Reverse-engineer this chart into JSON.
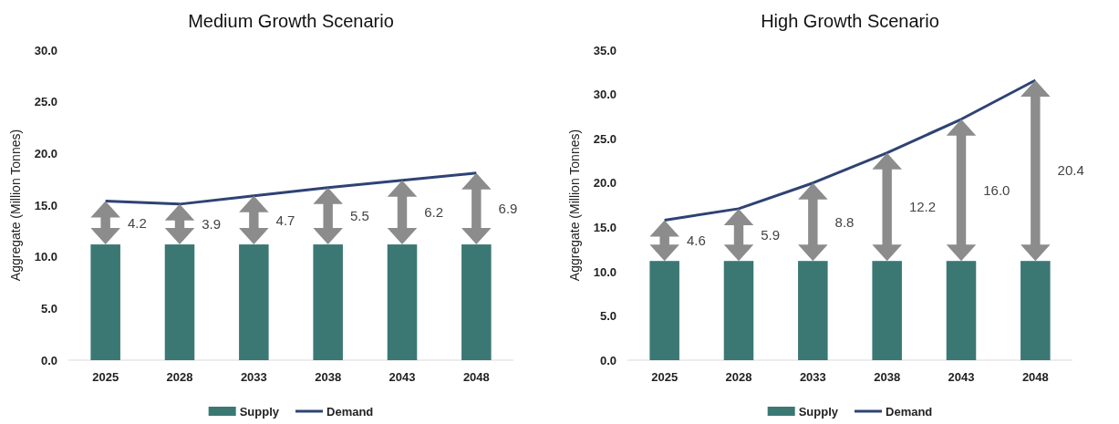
{
  "chart_data": [
    {
      "type": "bar",
      "title": "Medium Growth Scenario",
      "ylabel": "Aggregate (Million Tonnes)",
      "categories": [
        "2025",
        "2028",
        "2033",
        "2038",
        "2043",
        "2048"
      ],
      "series": [
        {
          "name": "Supply",
          "color": "#3b7874",
          "values": [
            11.2,
            11.2,
            11.2,
            11.2,
            11.2,
            11.2
          ]
        },
        {
          "name": "Demand",
          "type": "line",
          "color": "#2e4374",
          "values": [
            15.4,
            15.1,
            15.9,
            16.7,
            17.4,
            18.1
          ]
        }
      ],
      "ylim": [
        0,
        30
      ],
      "yticks": [
        {
          "value": 0,
          "label": "0.0"
        },
        {
          "value": 5,
          "label": "5.0"
        },
        {
          "value": 10,
          "label": "10.0"
        },
        {
          "value": 15,
          "label": "15.0"
        },
        {
          "value": 20,
          "label": "20.0"
        },
        {
          "value": 25,
          "label": "25.0"
        },
        {
          "value": 30,
          "label": "30.0"
        }
      ],
      "annotations": [
        "4.2",
        "3.9",
        "4.7",
        "5.5",
        "6.2",
        "6.9"
      ],
      "grid": false,
      "legend": "bottom"
    },
    {
      "type": "bar",
      "title": "High Growth Scenario",
      "ylabel": "Aggregate (Million Tonnes)",
      "categories": [
        "2025",
        "2028",
        "2033",
        "2038",
        "2043",
        "2048"
      ],
      "series": [
        {
          "name": "Supply",
          "color": "#3b7874",
          "values": [
            11.2,
            11.2,
            11.2,
            11.2,
            11.2,
            11.2
          ]
        },
        {
          "name": "Demand",
          "type": "line",
          "color": "#2e4374",
          "values": [
            15.8,
            17.1,
            20.0,
            23.4,
            27.2,
            31.6
          ]
        }
      ],
      "ylim": [
        0,
        35
      ],
      "yticks": [
        {
          "value": 0,
          "label": "0.0"
        },
        {
          "value": 5,
          "label": "5.0"
        },
        {
          "value": 10,
          "label": "10.0"
        },
        {
          "value": 15,
          "label": "15.0"
        },
        {
          "value": 20,
          "label": "20.0"
        },
        {
          "value": 25,
          "label": "25.0"
        },
        {
          "value": 30,
          "label": "30.0"
        },
        {
          "value": 35,
          "label": "35.0"
        }
      ],
      "annotations": [
        "4.6",
        "5.9",
        "8.8",
        "12.2",
        "16.0",
        "20.4"
      ],
      "grid": false,
      "legend": "bottom"
    }
  ]
}
